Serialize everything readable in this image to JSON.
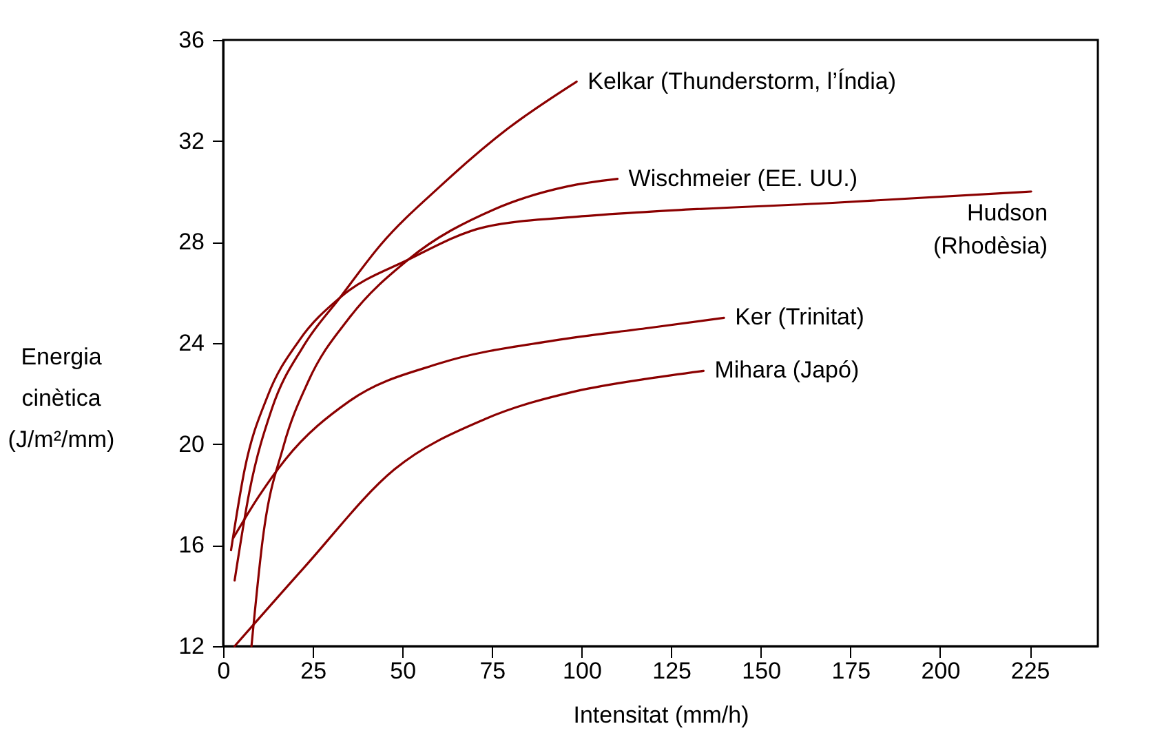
{
  "chart_data": {
    "type": "line",
    "xlabel": "Intensitat (mm/h)",
    "ylabel": "Energia cinètica (J/m²/mm)",
    "xlim": [
      0,
      244
    ],
    "ylim": [
      12,
      36
    ],
    "xticks": [
      0,
      25,
      50,
      75,
      100,
      125,
      150,
      175,
      200,
      225
    ],
    "yticks": [
      12,
      16,
      20,
      24,
      28,
      32,
      36
    ],
    "grid": false,
    "legend": false,
    "marker": "none",
    "line_style": "solid",
    "series": [
      {
        "name": "Kelkar (Thunderstorm, l’Índia)",
        "color": "#8b0000",
        "x": [
          3.2,
          7.3,
          13.6,
          22.5,
          32.6,
          44,
          60.5,
          79.5,
          98.6
        ],
        "values": [
          14.6,
          18.1,
          21.4,
          23.9,
          25.8,
          27.9,
          30.2,
          32.5,
          34.35
        ]
      },
      {
        "name": "Wischmeier (EE. UU.)",
        "color": "#8b0000",
        "x": [
          7.9,
          11.1,
          16.8,
          23.8,
          35.2,
          51.6,
          75.7,
          96,
          110
        ],
        "values": [
          12,
          16.3,
          19.9,
          22.5,
          25,
          27.3,
          29.3,
          30.2,
          30.5
        ]
      },
      {
        "name": "Hudson (Rhodèsia)",
        "color": "#8b0000",
        "x": [
          2.2,
          6,
          12.4,
          21.2,
          32.6,
          51.6,
          73.2,
          98.6,
          118.8,
          170,
          225.4
        ],
        "values": [
          15.8,
          19,
          21.9,
          24.1,
          25.8,
          27.3,
          28.6,
          29,
          29.2,
          29.55,
          30
        ]
      },
      {
        "name": "Ker (Trinitat)",
        "color": "#8b0000",
        "x": [
          2.9,
          9.8,
          17.4,
          35.2,
          60.5,
          92.2,
          118.8,
          139.7
        ],
        "values": [
          16.3,
          17.9,
          19.4,
          21.7,
          23.2,
          24.1,
          24.6,
          25
        ]
      },
      {
        "name": "Mihara (Japó)",
        "color": "#8b0000",
        "x": [
          3.2,
          22.5,
          47.8,
          73.2,
          98.6,
          118.8,
          134
        ],
        "values": [
          12,
          15.1,
          19,
          21,
          22.1,
          22.6,
          22.9
        ]
      }
    ]
  }
}
